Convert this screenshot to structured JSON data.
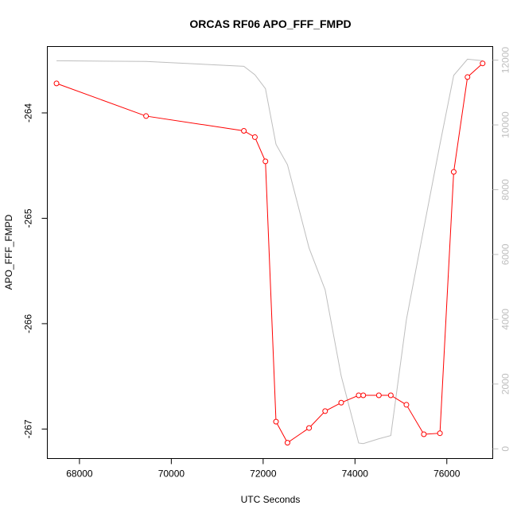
{
  "chart_data": {
    "type": "line",
    "title": "ORCAS RF06 APO_FFF_FMPD",
    "xlabel": "UTC Seconds",
    "ylabel": "APO_FFF_FMPD",
    "xlim": [
      67300,
      77000
    ],
    "ylim": [
      -267.28,
      -263.37
    ],
    "y2lim": [
      -300,
      12420
    ],
    "x_ticks": [
      68000,
      70000,
      72000,
      74000,
      76000
    ],
    "y_ticks": [
      -267,
      -266,
      -265,
      -264
    ],
    "y2_ticks": [
      0,
      2000,
      4000,
      6000,
      8000,
      10000,
      12000
    ],
    "colors": {
      "primary": "#ff0000",
      "secondary": "#bebebe"
    },
    "series": [
      {
        "axis": "left",
        "style": "line-with-circles",
        "color": "#ff0000",
        "x": [
          67500,
          69450,
          71580,
          71820,
          72050,
          72280,
          72530,
          73000,
          73350,
          73700,
          74080,
          74180,
          74520,
          74780,
          75120,
          75500,
          75850,
          76150,
          76450,
          76780
        ],
        "y": [
          -263.72,
          -264.03,
          -264.17,
          -264.23,
          -264.46,
          -266.93,
          -267.13,
          -266.99,
          -266.83,
          -266.75,
          -266.68,
          -266.68,
          -266.68,
          -266.68,
          -266.77,
          -267.05,
          -267.04,
          -264.56,
          -263.66,
          -263.53
        ]
      },
      {
        "axis": "right",
        "style": "line",
        "color": "#bebebe",
        "x": [
          67500,
          69450,
          71580,
          71820,
          72050,
          72280,
          72530,
          73000,
          73350,
          73700,
          74080,
          74180,
          74520,
          74780,
          75120,
          75500,
          75850,
          76150,
          76450,
          76780
        ],
        "y": [
          11980,
          11960,
          11810,
          11550,
          11120,
          9400,
          8770,
          6200,
          4910,
          2250,
          180,
          160,
          310,
          410,
          3990,
          6820,
          9400,
          11530,
          12030,
          11980
        ]
      }
    ]
  }
}
